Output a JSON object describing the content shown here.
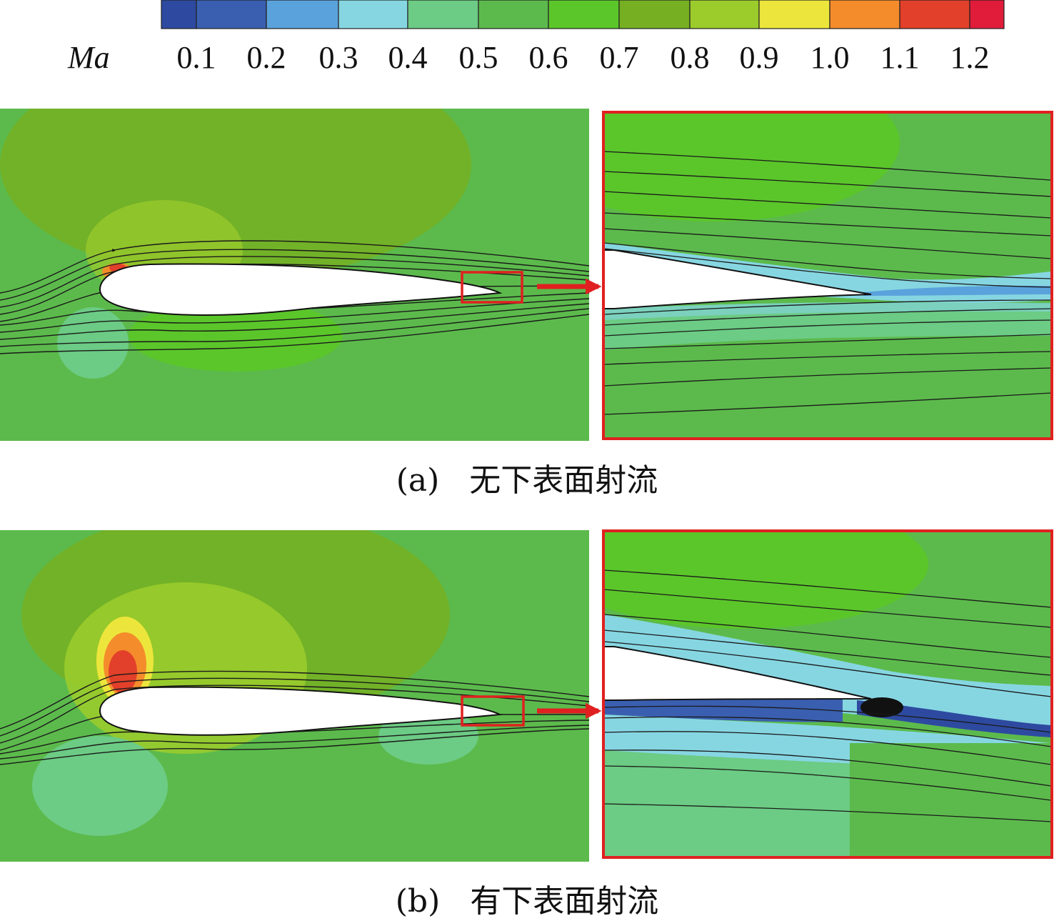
{
  "colorbar": {
    "variable": "Ma",
    "tick_labels": [
      "0.1",
      "0.2",
      "0.3",
      "0.4",
      "0.5",
      "0.6",
      "0.7",
      "0.8",
      "0.9",
      "1.0",
      "1.1",
      "1.2"
    ],
    "colors": [
      "#2e4aa0",
      "#3a5fb0",
      "#5aa2dc",
      "#86d6e2",
      "#6ccb84",
      "#5cba4c",
      "#5bc62a",
      "#76b022",
      "#9ccc2c",
      "#ece63c",
      "#f48c2c",
      "#e2402a",
      "#e01c3a"
    ]
  },
  "panels": [
    {
      "id": "a",
      "caption_label": "(a)",
      "caption_text": "无下表面射流"
    },
    {
      "id": "b",
      "caption_label": "(b)",
      "caption_text": "有下表面射流"
    }
  ],
  "highlight_color": "#e02020"
}
